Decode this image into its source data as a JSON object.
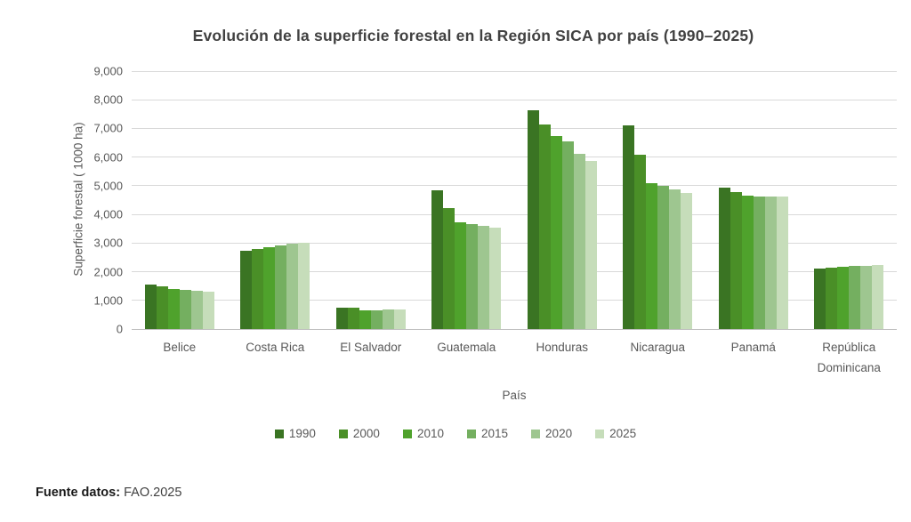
{
  "footer": {
    "source_label": "Fuente datos:",
    "source_value": " FAO.2025"
  },
  "chart_data": {
    "type": "bar",
    "title": "Evolución de la superficie forestal en la Región SICA por país (1990–2025)",
    "xlabel": "País",
    "ylabel": "Superficie forestal ( 1000 ha)",
    "ylim": [
      0,
      9000
    ],
    "ytick_step": 1000,
    "ytick_labels": [
      "0",
      "1,000",
      "2,000",
      "3,000",
      "4,000",
      "5,000",
      "6,000",
      "7,000",
      "8,000",
      "9,000"
    ],
    "grid": true,
    "legend_position": "bottom",
    "categories": [
      "Belice",
      "Costa Rica",
      "El Salvador",
      "Guatemala",
      "Honduras",
      "Nicaragua",
      "Panamá",
      "República Dominicana"
    ],
    "series": [
      {
        "name": "1990",
        "color": "#3A7423",
        "values": [
          1550,
          2740,
          750,
          4840,
          7640,
          7100,
          4950,
          2110
        ]
      },
      {
        "name": "2000",
        "color": "#4A8F27",
        "values": [
          1480,
          2800,
          730,
          4220,
          7130,
          6080,
          4770,
          2140
        ]
      },
      {
        "name": "2010",
        "color": "#4FA22C",
        "values": [
          1400,
          2860,
          660,
          3720,
          6740,
          5100,
          4660,
          2170
        ]
      },
      {
        "name": "2015",
        "color": "#74AF60",
        "values": [
          1370,
          2930,
          650,
          3650,
          6540,
          5000,
          4620,
          2200
        ]
      },
      {
        "name": "2020",
        "color": "#9EC690",
        "values": [
          1340,
          2980,
          690,
          3590,
          6110,
          4860,
          4610,
          2210
        ]
      },
      {
        "name": "2025",
        "color": "#C6DDBA",
        "values": [
          1310,
          3010,
          690,
          3530,
          5870,
          4760,
          4610,
          2250
        ]
      }
    ]
  }
}
